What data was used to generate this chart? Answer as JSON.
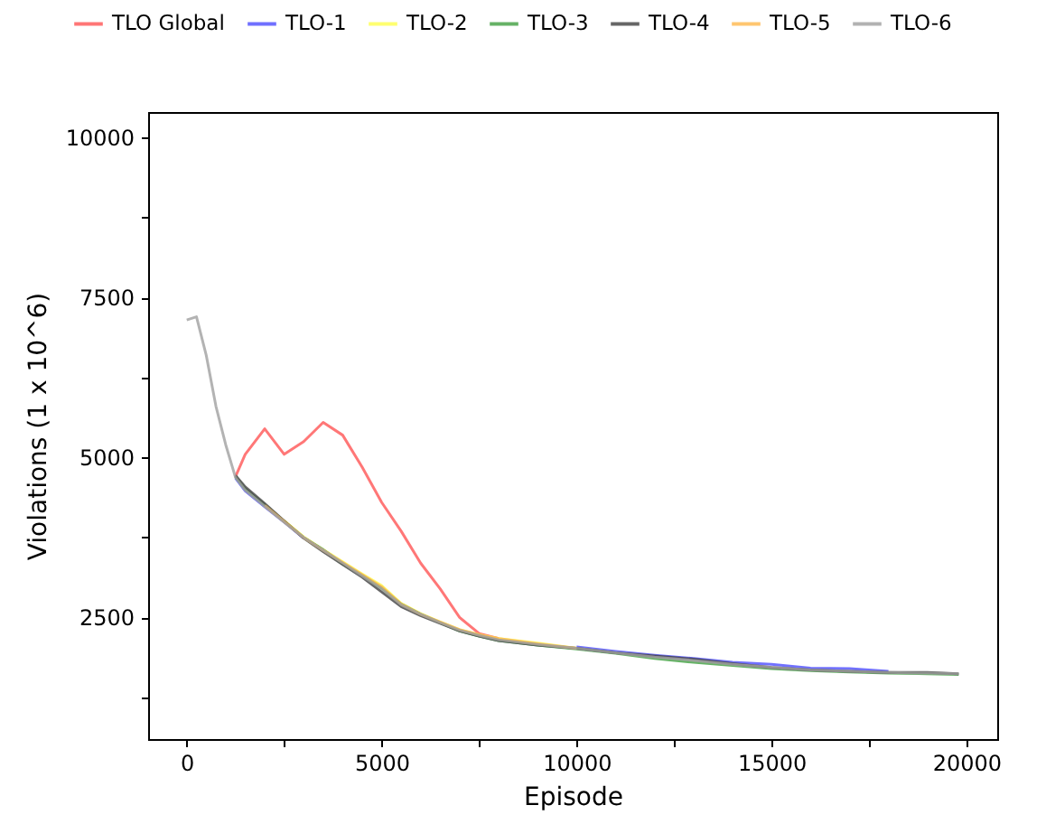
{
  "chart_data": {
    "type": "line",
    "xlabel": "Episode",
    "ylabel": "Violations (1 x 10^6)",
    "x": [
      0,
      250,
      500,
      750,
      1000,
      1250,
      1500,
      2000,
      2500,
      3000,
      3500,
      4000,
      4500,
      5000,
      5500,
      6000,
      6500,
      7000,
      7500,
      8000,
      9000,
      10000,
      11000,
      12000,
      13000,
      14000,
      15000,
      16000,
      17000,
      18000,
      19000,
      19800
    ],
    "series": [
      {
        "name": "TLO Global",
        "color": "#ff5555",
        "values": [
          null,
          null,
          null,
          null,
          null,
          4700,
          5050,
          5450,
          5050,
          5250,
          5550,
          5350,
          4850,
          4300,
          3850,
          3350,
          2950,
          2500,
          2250,
          2170,
          null,
          null,
          null,
          null,
          null,
          null,
          null,
          null,
          null,
          null,
          null,
          null
        ]
      },
      {
        "name": "TLO-1",
        "color": "#4d4dff",
        "values": [
          null,
          null,
          null,
          null,
          null,
          4680,
          4480,
          4230,
          3990,
          3740,
          null,
          null,
          null,
          null,
          null,
          null,
          null,
          null,
          null,
          null,
          null,
          2040,
          1970,
          1910,
          1860,
          1800,
          1770,
          1710,
          1700,
          1660,
          null,
          null
        ]
      },
      {
        "name": "TLO-2",
        "color": "#ffff4d",
        "values": [
          null,
          null,
          null,
          null,
          null,
          null,
          null,
          null,
          4010,
          3760,
          3560,
          3370,
          3180,
          3000,
          2720,
          2560,
          2430,
          2310,
          2230,
          2170,
          2100,
          2020,
          null,
          null,
          null,
          null,
          null,
          null,
          null,
          null,
          null,
          null
        ]
      },
      {
        "name": "TLO-3",
        "color": "#40a040",
        "values": [
          null,
          null,
          null,
          null,
          null,
          4700,
          4510,
          4260,
          4000,
          3750,
          3560,
          3340,
          3160,
          2960,
          2710,
          2550,
          2420,
          2290,
          2210,
          2140,
          2070,
          2010,
          1940,
          1860,
          1800,
          1750,
          1700,
          1670,
          1650,
          1630,
          1620,
          1610
        ]
      },
      {
        "name": "TLO-4",
        "color": "#404040",
        "values": [
          null,
          null,
          null,
          null,
          null,
          4720,
          4540,
          4280,
          4010,
          3740,
          3530,
          3330,
          3130,
          2900,
          2670,
          2530,
          2410,
          2290,
          2210,
          2140,
          2070,
          2020,
          1950,
          1900,
          1850,
          1780,
          1720,
          1680,
          1660,
          1640,
          1640,
          1620
        ]
      },
      {
        "name": "TLO-5",
        "color": "#ffb84d",
        "values": [
          null,
          null,
          null,
          null,
          null,
          null,
          null,
          4250,
          4000,
          3750,
          3550,
          3360,
          3170,
          2980,
          2710,
          2550,
          2430,
          2310,
          2230,
          2170,
          2090,
          2020,
          null,
          null,
          null,
          null,
          null,
          null,
          null,
          null,
          null,
          null
        ]
      },
      {
        "name": "TLO-6",
        "color": "#a0a0a0",
        "values": [
          7150,
          7200,
          6600,
          5800,
          5200,
          4690,
          4490,
          4240,
          3990,
          3750,
          3550,
          3350,
          3150,
          2950,
          2700,
          2550,
          2420,
          2300,
          2220,
          2150,
          2080,
          2020,
          1950,
          1880,
          1830,
          1770,
          1720,
          1680,
          1660,
          1640,
          1630,
          1620
        ]
      }
    ],
    "xlim": [
      -990,
      20790
    ],
    "ylim": [
      600,
      10400
    ],
    "xticks": [
      0,
      {
        "value": 2500,
        "label": null
      },
      5000,
      {
        "value": 7500,
        "label": null
      },
      10000,
      {
        "value": 12500,
        "label": null
      },
      15000,
      {
        "value": 17500,
        "label": null
      },
      20000
    ],
    "yticks": [
      {
        "value": 1250,
        "label": null
      },
      2500,
      {
        "value": 3750,
        "label": null
      },
      5000,
      {
        "value": 6250,
        "label": null
      },
      7500,
      {
        "value": 8750,
        "label": null
      },
      10000
    ],
    "grid": false,
    "legend": "top",
    "marker": "none",
    "line_style": "solid"
  }
}
